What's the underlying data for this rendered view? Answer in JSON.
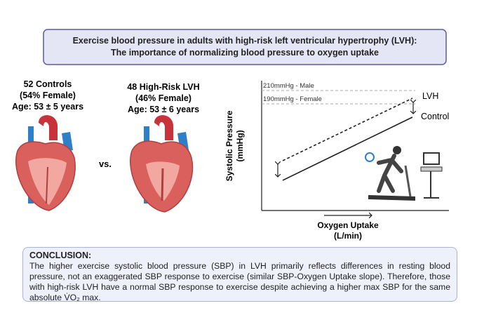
{
  "header": {
    "title": [
      "Exercise blood pressure in adults with high-risk left ventricular hypertrophy (LVH):",
      "The importance of normalizing blood pressure to oxygen uptake"
    ]
  },
  "groups": [
    {
      "lines": [
        "52 Controls",
        "(54% Female)",
        "Age: 53 ± 5 years"
      ]
    },
    {
      "lines": [
        "48 High-Risk LVH",
        "(46% Female)",
        "Age: 53 ± 6 years"
      ]
    }
  ],
  "versus": "vs.",
  "diagram": {
    "y_label": [
      "Systolic Pressure",
      "(mmHg)"
    ],
    "x_label": [
      "Oxygen Uptake",
      "(L/min)"
    ],
    "thresholds": [
      "210mmHg - Male",
      "190mmHg - Female"
    ],
    "lines": [
      "LVH",
      "Control"
    ]
  },
  "conclusion": {
    "heading": "CONCLUSION:",
    "text": "The higher exercise systolic blood pressure (SBP) in LVH primarily reflects differences in resting blood pressure, not an exaggerated SBP response to exercise (similar SBP-Oxygen Uptake slope). Therefore, those with high-risk LVH have a normal SBP response to exercise despite achieving a higher max SBP for the same absolute V̇O₂ max."
  }
}
